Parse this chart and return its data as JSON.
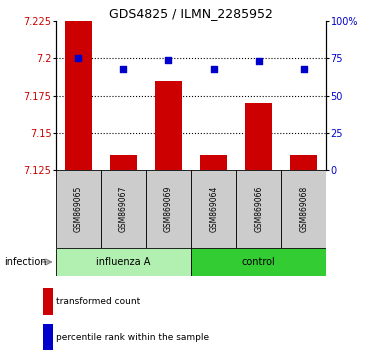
{
  "title": "GDS4825 / ILMN_2285952",
  "samples": [
    "GSM869065",
    "GSM869067",
    "GSM869069",
    "GSM869064",
    "GSM869066",
    "GSM869068"
  ],
  "groups": [
    "influenza A",
    "influenza A",
    "influenza A",
    "control",
    "control",
    "control"
  ],
  "group_labels": [
    "influenza A",
    "control"
  ],
  "group_color_influenza": "#b2f0b2",
  "group_color_control": "#33cc33",
  "bar_color": "#cc0000",
  "dot_color": "#0000cc",
  "transformed_counts": [
    7.225,
    7.135,
    7.185,
    7.135,
    7.17,
    7.135
  ],
  "percentile_ranks": [
    75,
    68,
    74,
    68,
    73,
    68
  ],
  "ylim_left": [
    7.125,
    7.225
  ],
  "yticks_left": [
    7.125,
    7.15,
    7.175,
    7.2,
    7.225
  ],
  "yticks_right": [
    0,
    25,
    50,
    75,
    100
  ],
  "ylabel_left_color": "#cc0000",
  "ylabel_right_color": "#0000cc",
  "infection_label": "infection",
  "legend_bar_label": "transformed count",
  "legend_dot_label": "percentile rank within the sample",
  "background_sample_row": "#cccccc"
}
